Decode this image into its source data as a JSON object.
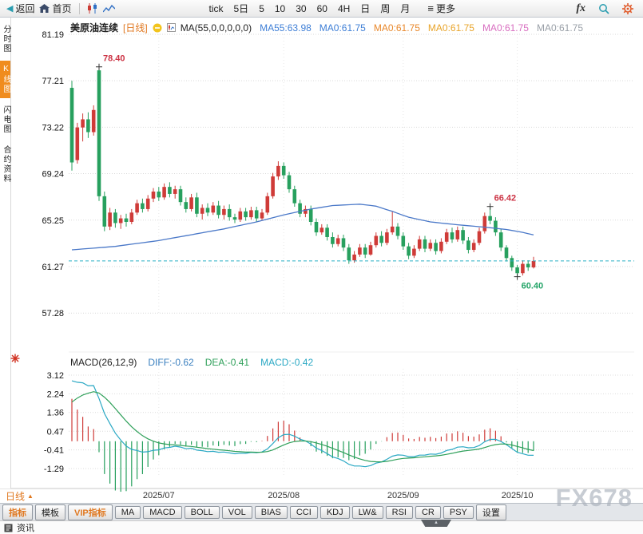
{
  "toolbar": {
    "back_label": "返回",
    "home_label": "首页",
    "periods": [
      "tick",
      "5日",
      "5",
      "10",
      "30",
      "60",
      "4H",
      "日",
      "周",
      "月"
    ],
    "more_label": "更多",
    "fx_label": "fx"
  },
  "sidebar": {
    "items": [
      {
        "label": "分时图",
        "active": false
      },
      {
        "label": "K线图",
        "active": true
      },
      {
        "label": "闪电图",
        "active": false
      },
      {
        "label": "合约资料",
        "active": false
      }
    ]
  },
  "header": {
    "symbol": "美原油连续",
    "period_tag": "[日线]",
    "ma_values": [
      {
        "text": "MA(55,0,0,0,0,0)",
        "color": "#222222"
      },
      {
        "text": "MA55:63.98",
        "color": "#3f7fd6"
      },
      {
        "text": "MA0:61.75",
        "color": "#3f7fd6"
      },
      {
        "text": "MA0:61.75",
        "color": "#e8872a"
      },
      {
        "text": "MA0:61.75",
        "color": "#e8a42a"
      },
      {
        "text": "MA0:61.75",
        "color": "#d86ec0"
      },
      {
        "text": "MA0:61.75",
        "color": "#9aa0a8"
      }
    ]
  },
  "macd_header": {
    "items": [
      {
        "text": "MACD(26,12,9)",
        "color": "#222222"
      },
      {
        "text": "DIFF:-0.62",
        "color": "#3a7fbf"
      },
      {
        "text": "DEA:-0.41",
        "color": "#2fa05a"
      },
      {
        "text": "MACD:-0.42",
        "color": "#2aa8c4"
      }
    ]
  },
  "bottom": {
    "period_label": "日线",
    "tabs": [
      {
        "text": "指标",
        "accent": true
      },
      {
        "text": "模板",
        "accent": false
      },
      {
        "text": "VIP指标",
        "accent": true
      },
      {
        "text": "MA",
        "accent": false
      },
      {
        "text": "MACD",
        "accent": false
      },
      {
        "text": "BOLL",
        "accent": false
      },
      {
        "text": "VOL",
        "accent": false
      },
      {
        "text": "BIAS",
        "accent": false
      },
      {
        "text": "CCI",
        "accent": false
      },
      {
        "text": "KDJ",
        "accent": false
      },
      {
        "text": "LW&",
        "accent": false
      },
      {
        "text": "RSI",
        "accent": false
      },
      {
        "text": "CR",
        "accent": false
      },
      {
        "text": "PSY",
        "accent": false
      },
      {
        "text": "设置",
        "accent": false
      }
    ],
    "news_label": "资讯"
  },
  "watermark": "FX678",
  "colors": {
    "up": "#cf3b38",
    "down": "#27a05e",
    "ma55": "#4a78c8",
    "price_line": "#2ab0c5",
    "diff": "#2aa8c4",
    "dea": "#2fa05a"
  },
  "chart_data": {
    "type": "candlestick",
    "symbol": "美原油连续",
    "period": "日线",
    "y_ticks": [
      81.19,
      77.21,
      73.22,
      69.24,
      65.25,
      61.27,
      57.28
    ],
    "x_ticks": [
      {
        "index": 16,
        "label": "2025/07"
      },
      {
        "index": 39,
        "label": "2025/08"
      },
      {
        "index": 61,
        "label": "2025/09"
      },
      {
        "index": 82,
        "label": "2025/10"
      }
    ],
    "current_price": 61.75,
    "ma55_points": [
      [
        0,
        62.7
      ],
      [
        8,
        63.0
      ],
      [
        16,
        63.5
      ],
      [
        22,
        64.0
      ],
      [
        28,
        64.5
      ],
      [
        34,
        65.1
      ],
      [
        39,
        65.7
      ],
      [
        44,
        66.2
      ],
      [
        48,
        66.5
      ],
      [
        53,
        66.62
      ],
      [
        56,
        66.45
      ],
      [
        59,
        66.0
      ],
      [
        62,
        65.5
      ],
      [
        66,
        65.1
      ],
      [
        71,
        64.85
      ],
      [
        76,
        64.65
      ],
      [
        80,
        64.45
      ],
      [
        83,
        64.2
      ],
      [
        85,
        63.98
      ]
    ],
    "candles": [
      [
        76.6,
        77.2,
        69.5,
        70.2
      ],
      [
        70.4,
        73.6,
        70.1,
        73.2
      ],
      [
        73.2,
        74.4,
        72.0,
        73.9
      ],
      [
        73.9,
        74.5,
        72.3,
        72.8
      ],
      [
        72.8,
        75.1,
        72.5,
        74.7
      ],
      [
        78.1,
        78.4,
        66.9,
        67.3
      ],
      [
        67.3,
        67.7,
        64.3,
        64.7
      ],
      [
        64.7,
        66.3,
        64.4,
        65.9
      ],
      [
        65.9,
        66.2,
        64.6,
        65.0
      ],
      [
        65.0,
        65.7,
        64.5,
        65.4
      ],
      [
        65.4,
        65.8,
        64.7,
        65.1
      ],
      [
        65.1,
        66.2,
        64.9,
        65.9
      ],
      [
        65.9,
        67.0,
        65.7,
        66.7
      ],
      [
        66.7,
        67.1,
        65.9,
        66.2
      ],
      [
        66.2,
        67.4,
        66.0,
        67.1
      ],
      [
        67.1,
        68.0,
        66.8,
        67.7
      ],
      [
        67.7,
        68.1,
        66.9,
        67.2
      ],
      [
        67.2,
        68.4,
        67.0,
        68.1
      ],
      [
        68.1,
        68.5,
        67.2,
        67.5
      ],
      [
        67.5,
        68.2,
        67.1,
        67.9
      ],
      [
        67.9,
        68.2,
        66.5,
        66.8
      ],
      [
        66.8,
        67.2,
        65.9,
        66.2
      ],
      [
        66.2,
        67.5,
        66.0,
        67.2
      ],
      [
        67.2,
        67.6,
        65.5,
        65.8
      ],
      [
        65.8,
        66.6,
        65.3,
        66.3
      ],
      [
        66.3,
        66.7,
        65.6,
        65.9
      ],
      [
        65.9,
        66.8,
        65.7,
        66.5
      ],
      [
        66.5,
        66.9,
        65.4,
        65.7
      ],
      [
        65.7,
        66.5,
        65.3,
        66.2
      ],
      [
        66.2,
        66.6,
        65.2,
        65.5
      ],
      [
        65.5,
        65.8,
        65.0,
        65.3
      ],
      [
        65.3,
        66.3,
        65.1,
        66.0
      ],
      [
        66.0,
        66.3,
        65.2,
        65.5
      ],
      [
        65.5,
        66.4,
        65.3,
        66.1
      ],
      [
        66.1,
        66.4,
        65.1,
        65.4
      ],
      [
        65.4,
        66.2,
        65.2,
        65.9
      ],
      [
        65.9,
        67.6,
        65.7,
        67.3
      ],
      [
        67.3,
        69.3,
        67.1,
        69.0
      ],
      [
        69.0,
        70.3,
        68.7,
        69.9
      ],
      [
        69.9,
        70.2,
        68.8,
        69.1
      ],
      [
        69.1,
        69.4,
        67.6,
        67.9
      ],
      [
        67.9,
        68.2,
        66.4,
        66.7
      ],
      [
        66.7,
        67.0,
        65.5,
        65.8
      ],
      [
        65.8,
        66.5,
        65.5,
        66.2
      ],
      [
        66.2,
        66.5,
        64.8,
        65.1
      ],
      [
        65.1,
        65.4,
        63.9,
        64.2
      ],
      [
        64.2,
        64.9,
        64.0,
        64.6
      ],
      [
        64.6,
        64.9,
        63.5,
        63.8
      ],
      [
        63.8,
        64.2,
        62.9,
        63.2
      ],
      [
        63.2,
        64.0,
        63.0,
        63.7
      ],
      [
        63.7,
        64.0,
        62.6,
        62.9
      ],
      [
        62.9,
        63.2,
        61.5,
        61.8
      ],
      [
        61.8,
        62.6,
        61.6,
        62.3
      ],
      [
        62.3,
        63.2,
        62.1,
        62.9
      ],
      [
        62.9,
        63.2,
        62.0,
        62.3
      ],
      [
        62.3,
        63.4,
        62.2,
        63.1
      ],
      [
        63.1,
        64.2,
        62.9,
        63.9
      ],
      [
        63.9,
        64.3,
        63.0,
        63.3
      ],
      [
        63.3,
        64.5,
        63.1,
        64.2
      ],
      [
        64.2,
        66.0,
        64.0,
        64.7
      ],
      [
        64.7,
        65.0,
        63.6,
        63.9
      ],
      [
        63.9,
        64.2,
        62.7,
        63.0
      ],
      [
        63.0,
        63.3,
        61.9,
        62.2
      ],
      [
        62.2,
        63.1,
        62.0,
        62.8
      ],
      [
        62.8,
        63.9,
        62.6,
        63.6
      ],
      [
        63.6,
        63.9,
        62.5,
        62.8
      ],
      [
        62.8,
        63.6,
        62.6,
        63.3
      ],
      [
        63.3,
        63.6,
        62.3,
        62.6
      ],
      [
        62.6,
        63.7,
        62.4,
        63.4
      ],
      [
        63.4,
        64.5,
        63.2,
        64.2
      ],
      [
        64.2,
        64.6,
        63.3,
        63.6
      ],
      [
        63.6,
        64.7,
        63.4,
        64.4
      ],
      [
        64.4,
        64.7,
        63.2,
        63.5
      ],
      [
        63.5,
        63.8,
        62.4,
        62.7
      ],
      [
        62.7,
        63.6,
        62.5,
        63.3
      ],
      [
        63.3,
        64.6,
        63.1,
        64.3
      ],
      [
        64.3,
        65.9,
        64.1,
        65.6
      ],
      [
        65.6,
        66.42,
        64.9,
        65.2
      ],
      [
        65.2,
        65.5,
        63.9,
        64.2
      ],
      [
        64.2,
        64.5,
        62.6,
        62.9
      ],
      [
        62.9,
        63.1,
        61.7,
        62.0
      ],
      [
        62.0,
        62.2,
        60.9,
        61.2
      ],
      [
        61.2,
        61.4,
        60.4,
        60.7
      ],
      [
        60.7,
        61.8,
        60.5,
        61.5
      ],
      [
        61.5,
        61.8,
        60.9,
        61.2
      ],
      [
        61.2,
        62.1,
        61.1,
        61.75
      ]
    ],
    "annotations": [
      {
        "index": 5,
        "pos": "high",
        "text": "78.40",
        "color": "#cc3344"
      },
      {
        "index": 77,
        "pos": "high",
        "text": "66.42",
        "color": "#cc3344"
      },
      {
        "index": 82,
        "pos": "low",
        "text": "60.40",
        "color": "#21a366"
      }
    ],
    "macd": {
      "params": "(26,12,9)",
      "diff": -0.62,
      "dea": -0.41,
      "macd": -0.42,
      "y_ticks": [
        3.12,
        2.24,
        1.36,
        0.47,
        -0.41,
        -1.29
      ]
    }
  }
}
